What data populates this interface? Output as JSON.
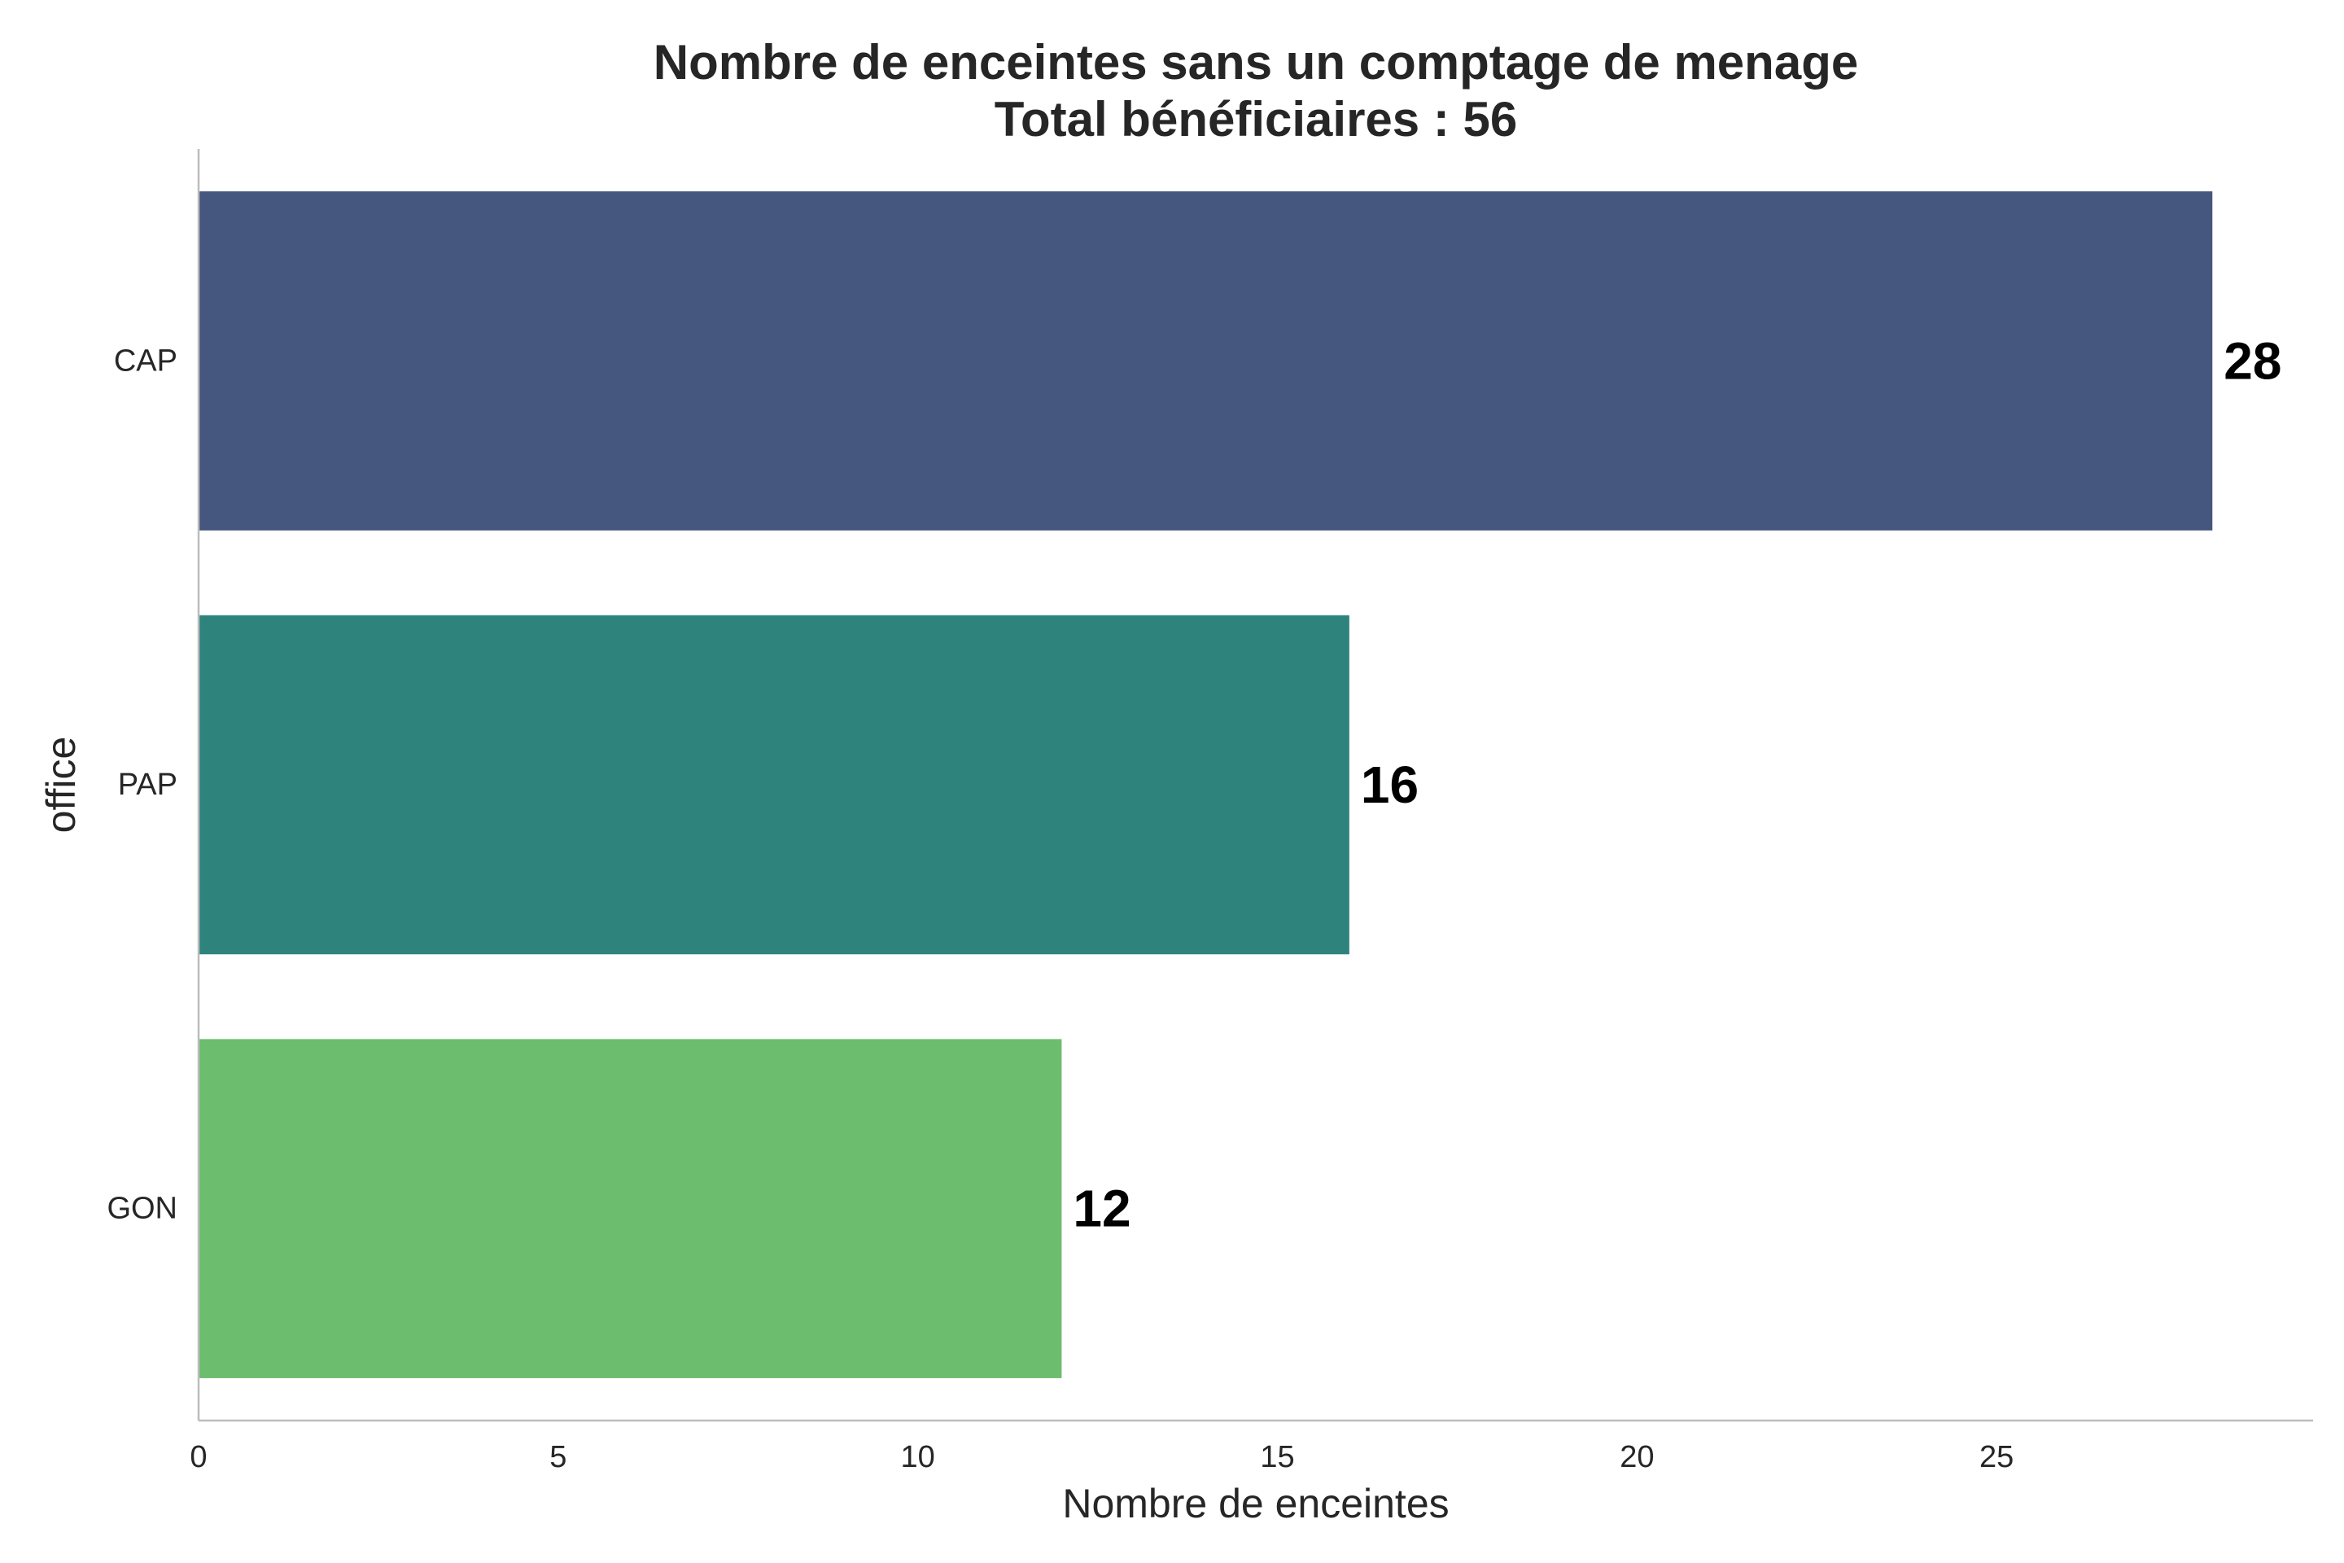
{
  "chart_data": {
    "type": "bar",
    "orientation": "horizontal",
    "title": "Nombre de enceintes sans un comptage de menage",
    "subtitle": "Total bénéficiaires : 56",
    "xlabel": "Nombre de enceintes",
    "ylabel": "office",
    "categories": [
      "CAP",
      "PAP",
      "GON"
    ],
    "values": [
      28,
      16,
      12
    ],
    "value_labels": [
      "28",
      "16",
      "12"
    ],
    "colors": [
      "#46577f",
      "#2e847d",
      "#6cbd6d"
    ],
    "xlim": [
      0,
      29.4
    ],
    "xticks": [
      0,
      5,
      10,
      15,
      20,
      25
    ],
    "xtick_labels": [
      "0",
      "5",
      "10",
      "15",
      "20",
      "25"
    ],
    "grid": false,
    "legend": "none"
  }
}
